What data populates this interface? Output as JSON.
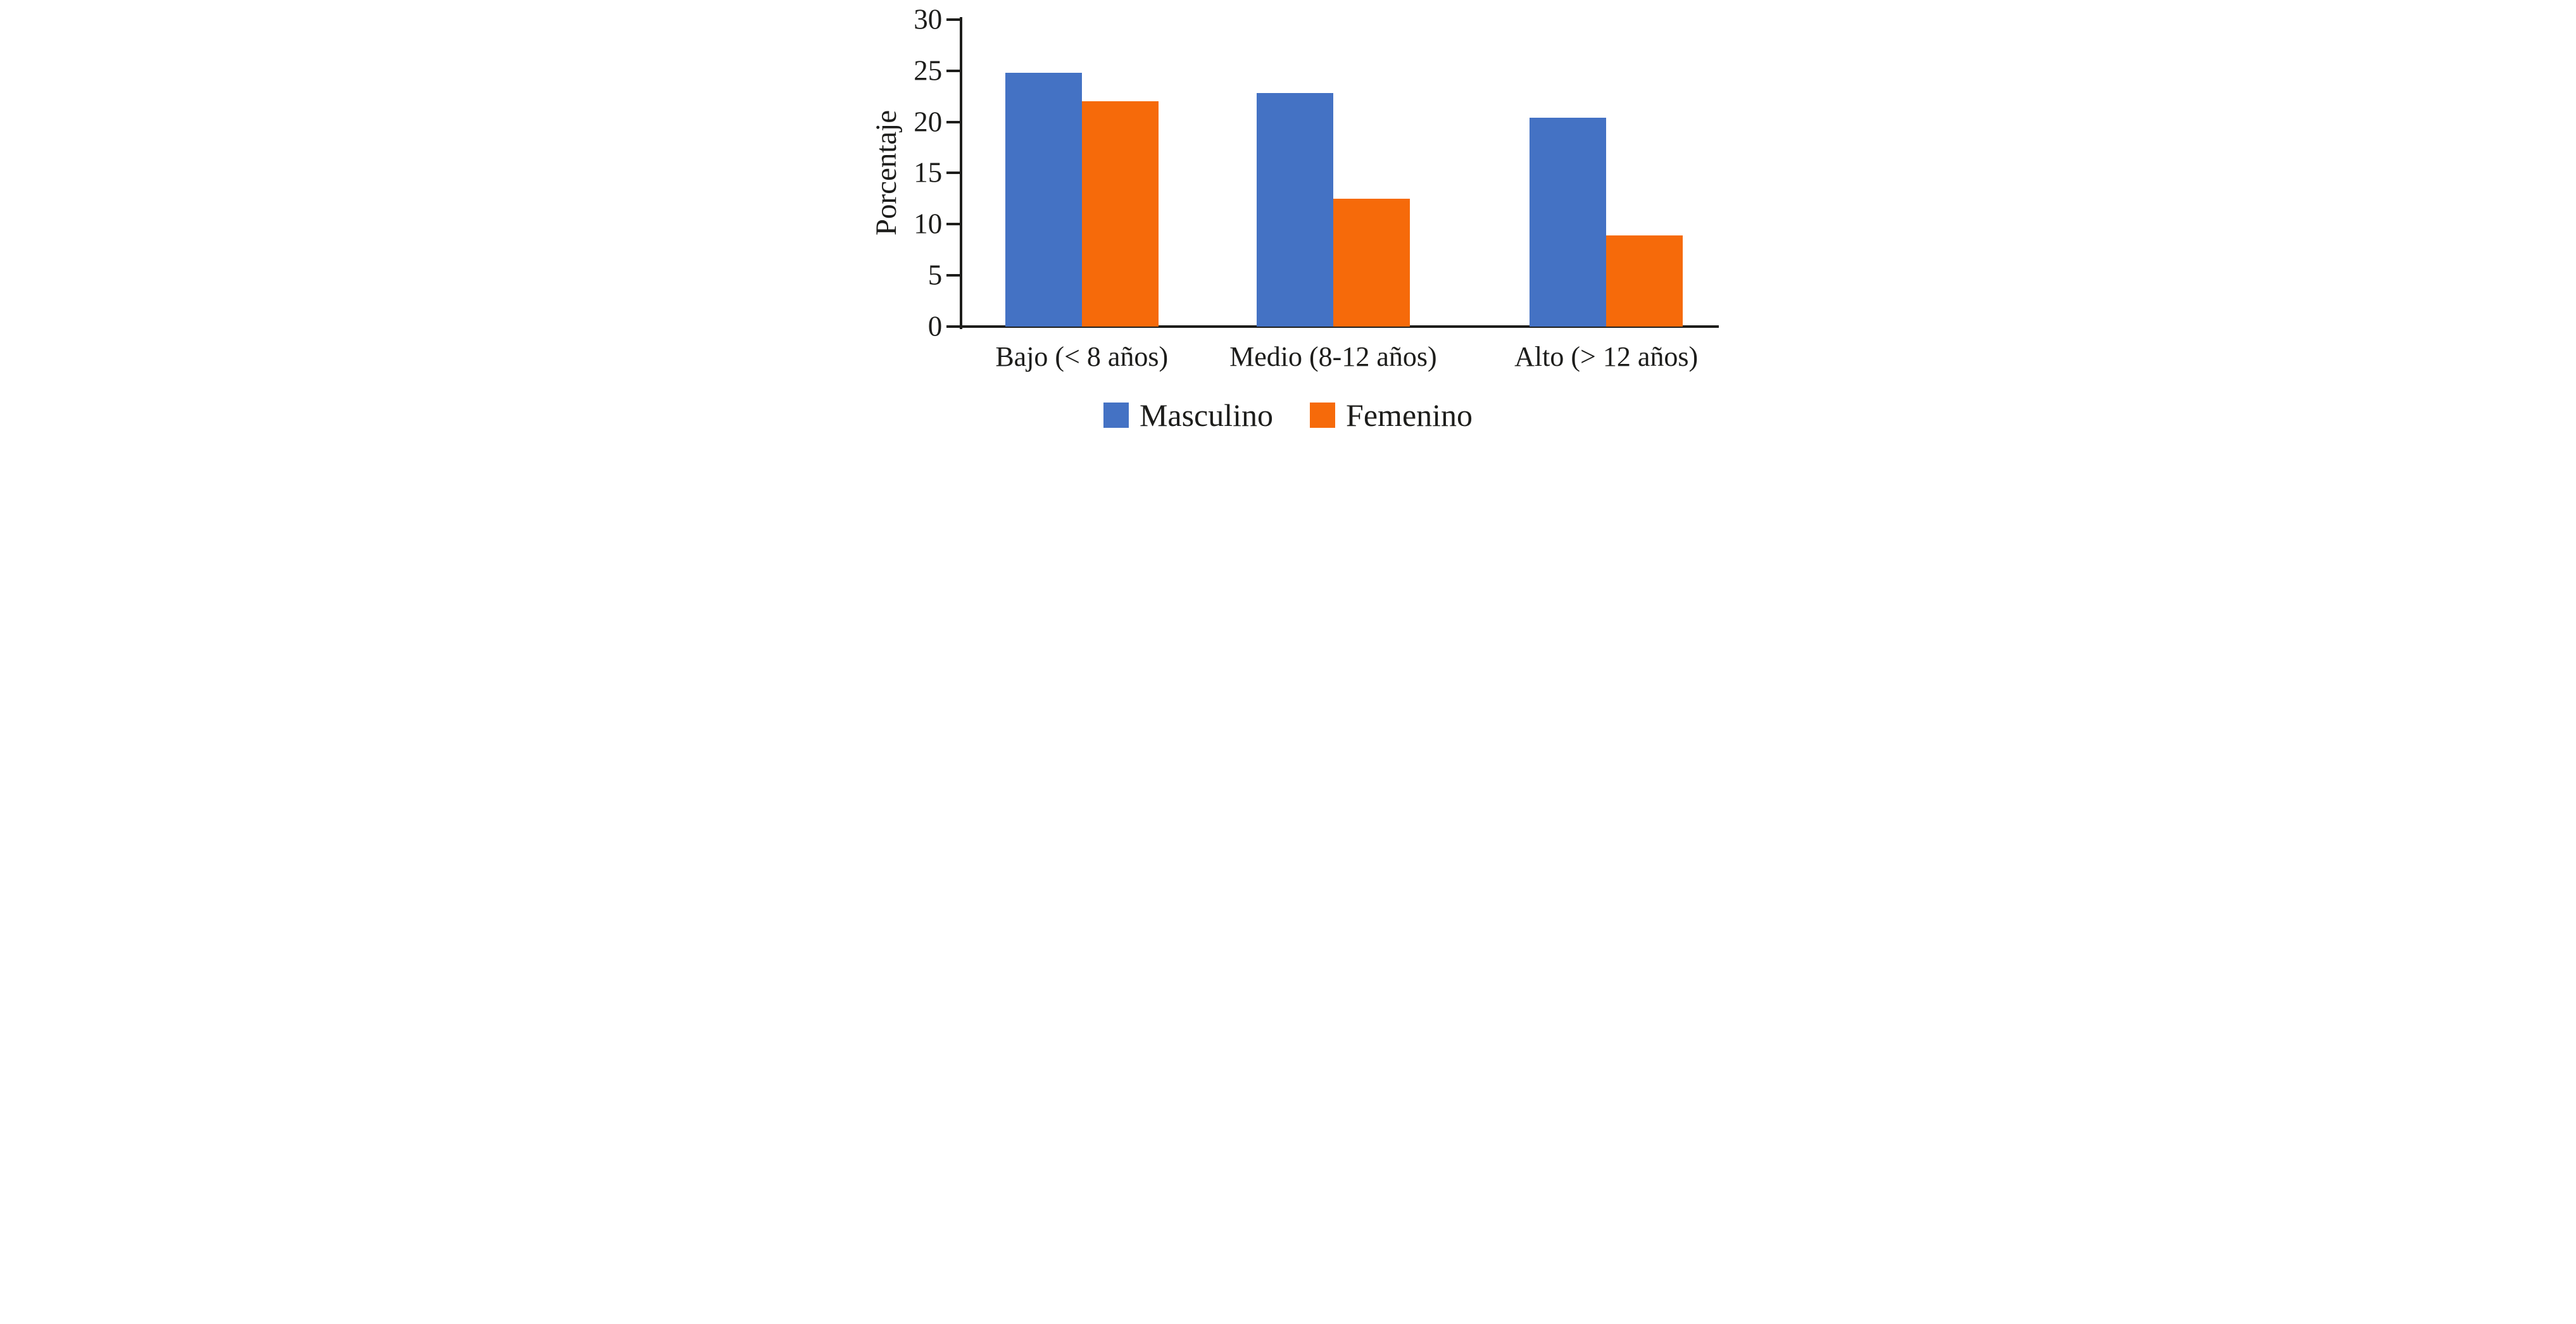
{
  "chart_data": {
    "type": "bar",
    "title": "",
    "ylabel": "Porcentaje",
    "xlabel": "",
    "categories": [
      "Bajo (< 8 años)",
      "Medio (8-12 años)",
      "Alto (> 12 años)"
    ],
    "series": [
      {
        "name": "Masculino",
        "color": "#4472C4",
        "values": [
          24.8,
          22.8,
          20.4
        ]
      },
      {
        "name": "Femenino",
        "color": "#F66A0A",
        "values": [
          22.0,
          12.5,
          8.9
        ]
      }
    ],
    "ylim": [
      0,
      30
    ],
    "yticks": [
      0,
      5,
      10,
      15,
      20,
      25,
      30
    ],
    "grid": false,
    "legend_position": "bottom",
    "axis_color": "#1D1D1B",
    "background_color": "#FFFFFF"
  }
}
